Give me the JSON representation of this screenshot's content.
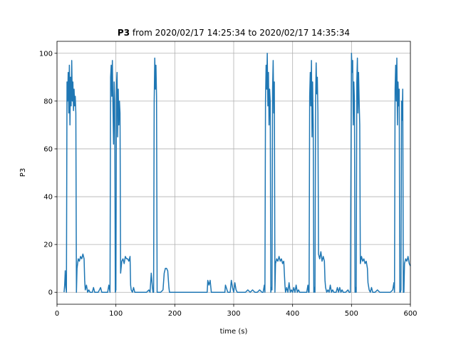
{
  "chart_data": {
    "type": "line",
    "title": [
      "P3",
      "from 2020/02/17 14:25:34 to 2020/02/17 14:35:34"
    ],
    "xlabel": "time (s)",
    "ylabel": "P3",
    "xlim": [
      0,
      600
    ],
    "xticks": [
      0,
      100,
      200,
      300,
      400,
      500,
      600
    ],
    "ylim": [
      -5,
      105
    ],
    "yticks": [
      0,
      20,
      40,
      60,
      80,
      100
    ],
    "grid": true,
    "x": [
      12,
      13,
      14,
      15,
      16,
      17,
      18,
      19,
      20,
      21,
      22,
      23,
      24,
      25,
      26,
      27,
      28,
      29,
      30,
      31,
      32,
      33,
      34,
      36,
      38,
      40,
      42,
      44,
      46,
      47,
      48,
      50,
      52,
      54,
      56,
      58,
      60,
      62,
      64,
      66,
      70,
      74,
      76,
      80,
      84,
      86,
      88,
      90,
      91,
      92,
      93,
      94,
      95,
      96,
      97,
      98,
      99,
      100,
      101,
      102,
      103,
      104,
      105,
      106,
      107,
      108,
      110,
      112,
      114,
      116,
      118,
      120,
      122,
      124,
      125,
      126,
      128,
      130,
      132,
      134,
      136,
      140,
      144,
      148,
      152,
      156,
      158,
      160,
      162,
      163,
      164,
      165,
      166,
      167,
      168,
      169,
      170,
      172,
      176,
      180,
      182,
      184,
      186,
      188,
      190,
      191,
      194,
      200,
      210,
      220,
      230,
      240,
      250,
      255,
      256,
      258,
      260,
      262,
      270,
      280,
      285,
      286,
      290,
      294,
      296,
      298,
      300,
      302,
      304,
      306,
      310,
      320,
      324,
      328,
      332,
      336,
      340,
      344,
      348,
      350,
      352,
      353,
      354,
      355,
      356,
      357,
      358,
      359,
      360,
      361,
      362,
      363,
      364,
      365,
      366,
      367,
      368,
      369,
      370,
      371,
      373,
      375,
      377,
      379,
      381,
      383,
      385,
      386,
      387,
      388,
      390,
      392,
      394,
      396,
      398,
      400,
      402,
      404,
      406,
      408,
      410,
      412,
      416,
      420,
      424,
      426,
      427,
      428,
      429,
      430,
      431,
      432,
      433,
      434,
      435,
      436,
      437,
      438,
      439,
      440,
      441,
      442,
      443,
      444,
      446,
      448,
      450,
      452,
      454,
      455,
      456,
      458,
      460,
      462,
      464,
      466,
      468,
      470,
      472,
      474,
      476,
      478,
      480,
      482,
      484,
      486,
      490,
      494,
      496,
      498,
      500,
      501,
      502,
      503,
      504,
      505,
      506,
      507,
      508,
      509,
      510,
      511,
      512,
      513,
      514,
      515,
      517,
      519,
      521,
      523,
      525,
      527,
      528,
      530,
      532,
      534,
      536,
      540,
      544,
      548,
      552,
      556,
      560,
      566,
      570,
      572,
      573,
      574,
      575,
      576,
      577,
      578,
      579,
      580,
      581,
      582,
      583,
      584,
      585,
      586,
      587,
      588,
      589,
      590,
      592,
      594,
      596,
      598,
      600
    ],
    "series": [
      {
        "name": "P3",
        "color": "#1f77b4",
        "values": [
          0,
          3,
          9,
          2,
          0,
          88,
          80,
          92,
          75,
          95,
          70,
          90,
          78,
          97,
          80,
          88,
          76,
          85,
          78,
          82,
          75,
          0,
          10,
          14,
          13,
          15,
          14,
          16,
          14,
          5,
          1,
          3,
          0,
          1,
          0,
          0,
          0,
          2,
          0,
          0,
          0,
          2,
          0,
          0,
          0,
          0,
          3,
          0,
          90,
          95,
          82,
          97,
          78,
          62,
          88,
          80,
          0,
          1,
          87,
          92,
          65,
          85,
          70,
          80,
          75,
          8,
          13,
          14,
          12,
          15,
          14,
          14,
          13,
          15,
          3,
          1,
          0,
          2,
          0,
          0,
          0,
          0,
          0,
          0,
          0,
          1,
          0,
          8,
          2,
          0,
          0,
          80,
          98,
          85,
          95,
          82,
          0,
          0,
          0,
          1,
          8,
          10,
          10,
          9,
          2,
          0,
          0,
          0,
          0,
          0,
          0,
          0,
          0,
          0,
          5,
          3,
          5,
          0,
          0,
          0,
          0,
          3,
          0,
          0,
          5,
          2,
          0,
          4,
          1,
          0,
          0,
          0,
          1,
          0,
          1,
          0,
          0,
          1,
          0,
          0,
          3,
          0,
          80,
          95,
          85,
          100,
          78,
          92,
          70,
          85,
          80,
          0,
          2,
          1,
          85,
          97,
          75,
          88,
          0,
          12,
          14,
          13,
          15,
          13,
          14,
          12,
          13,
          8,
          3,
          0,
          2,
          0,
          4,
          0,
          1,
          0,
          2,
          0,
          3,
          0,
          1,
          0,
          0,
          0,
          0,
          3,
          0,
          0,
          82,
          92,
          78,
          97,
          65,
          88,
          70,
          0,
          2,
          0,
          80,
          96,
          83,
          90,
          75,
          16,
          14,
          17,
          13,
          15,
          13,
          5,
          2,
          0,
          1,
          0,
          3,
          0,
          1,
          0,
          0,
          0,
          2,
          0,
          2,
          0,
          1,
          0,
          0,
          1,
          0,
          0,
          100,
          92,
          97,
          70,
          88,
          80,
          0,
          2,
          0,
          88,
          98,
          75,
          92,
          80,
          70,
          12,
          15,
          13,
          14,
          12,
          13,
          10,
          4,
          1,
          0,
          2,
          0,
          0,
          1,
          0,
          0,
          0,
          0,
          0,
          1,
          4,
          0,
          85,
          95,
          80,
          98,
          70,
          88,
          78,
          85,
          0,
          0,
          1,
          80,
          72,
          85,
          0,
          0,
          12,
          14,
          13,
          15,
          12,
          11
        ]
      }
    ]
  }
}
